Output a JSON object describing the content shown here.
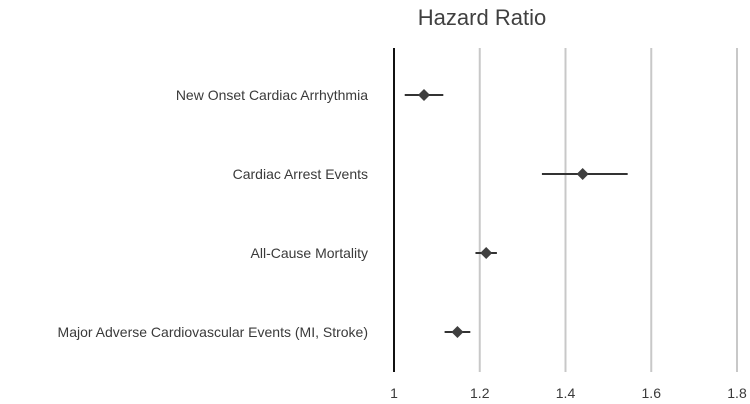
{
  "chart_data": {
    "type": "scatter",
    "subtype": "forest-plot",
    "title": "Hazard Ratio",
    "xlabel": "",
    "ylabel": "",
    "xlim": [
      1,
      1.8
    ],
    "xticks": [
      1,
      1.2,
      1.4,
      1.6,
      1.8
    ],
    "xtick_labels": [
      "1",
      "1.2",
      "1.4",
      "1.6",
      "1.8"
    ],
    "reference_line": 1,
    "grid": "vertical",
    "legend": "none",
    "marker": "diamond",
    "categories": [
      "New Onset Cardiac Arrhythmia",
      "Cardiac Arrest Events",
      "All-Cause Mortality",
      "Major Adverse Cardiovascular Events (MI, Stroke)"
    ],
    "values": [
      1.07,
      1.44,
      1.215,
      1.148
    ],
    "ci_lower": [
      1.025,
      1.345,
      1.19,
      1.118
    ],
    "ci_upper": [
      1.115,
      1.545,
      1.24,
      1.178
    ]
  },
  "colors": {
    "marker": "#3f3f3f",
    "ci": "#333333",
    "grid": "#c8c8c8",
    "reference": "#111111",
    "text": "#3a3a3a"
  }
}
